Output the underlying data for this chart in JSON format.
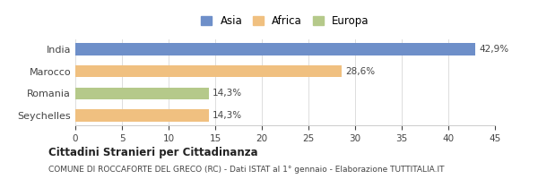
{
  "categories": [
    "India",
    "Marocco",
    "Romania",
    "Seychelles"
  ],
  "values": [
    42.9,
    28.6,
    14.3,
    14.3
  ],
  "labels": [
    "42,9%",
    "28,6%",
    "14,3%",
    "14,3%"
  ],
  "colors": [
    "#6e8fc9",
    "#f0c080",
    "#b5c98a",
    "#f0c080"
  ],
  "legend": [
    {
      "label": "Asia",
      "color": "#6e8fc9"
    },
    {
      "label": "Africa",
      "color": "#f0c080"
    },
    {
      "label": "Europa",
      "color": "#b5c98a"
    }
  ],
  "xlim": [
    0,
    45
  ],
  "xticks": [
    0,
    5,
    10,
    15,
    20,
    25,
    30,
    35,
    40,
    45
  ],
  "title": "Cittadini Stranieri per Cittadinanza",
  "subtitle": "COMUNE DI ROCCAFORTE DEL GRECO (RC) - Dati ISTAT al 1° gennaio - Elaborazione TUTTITALIA.IT",
  "background_color": "#ffffff",
  "bar_height": 0.55
}
